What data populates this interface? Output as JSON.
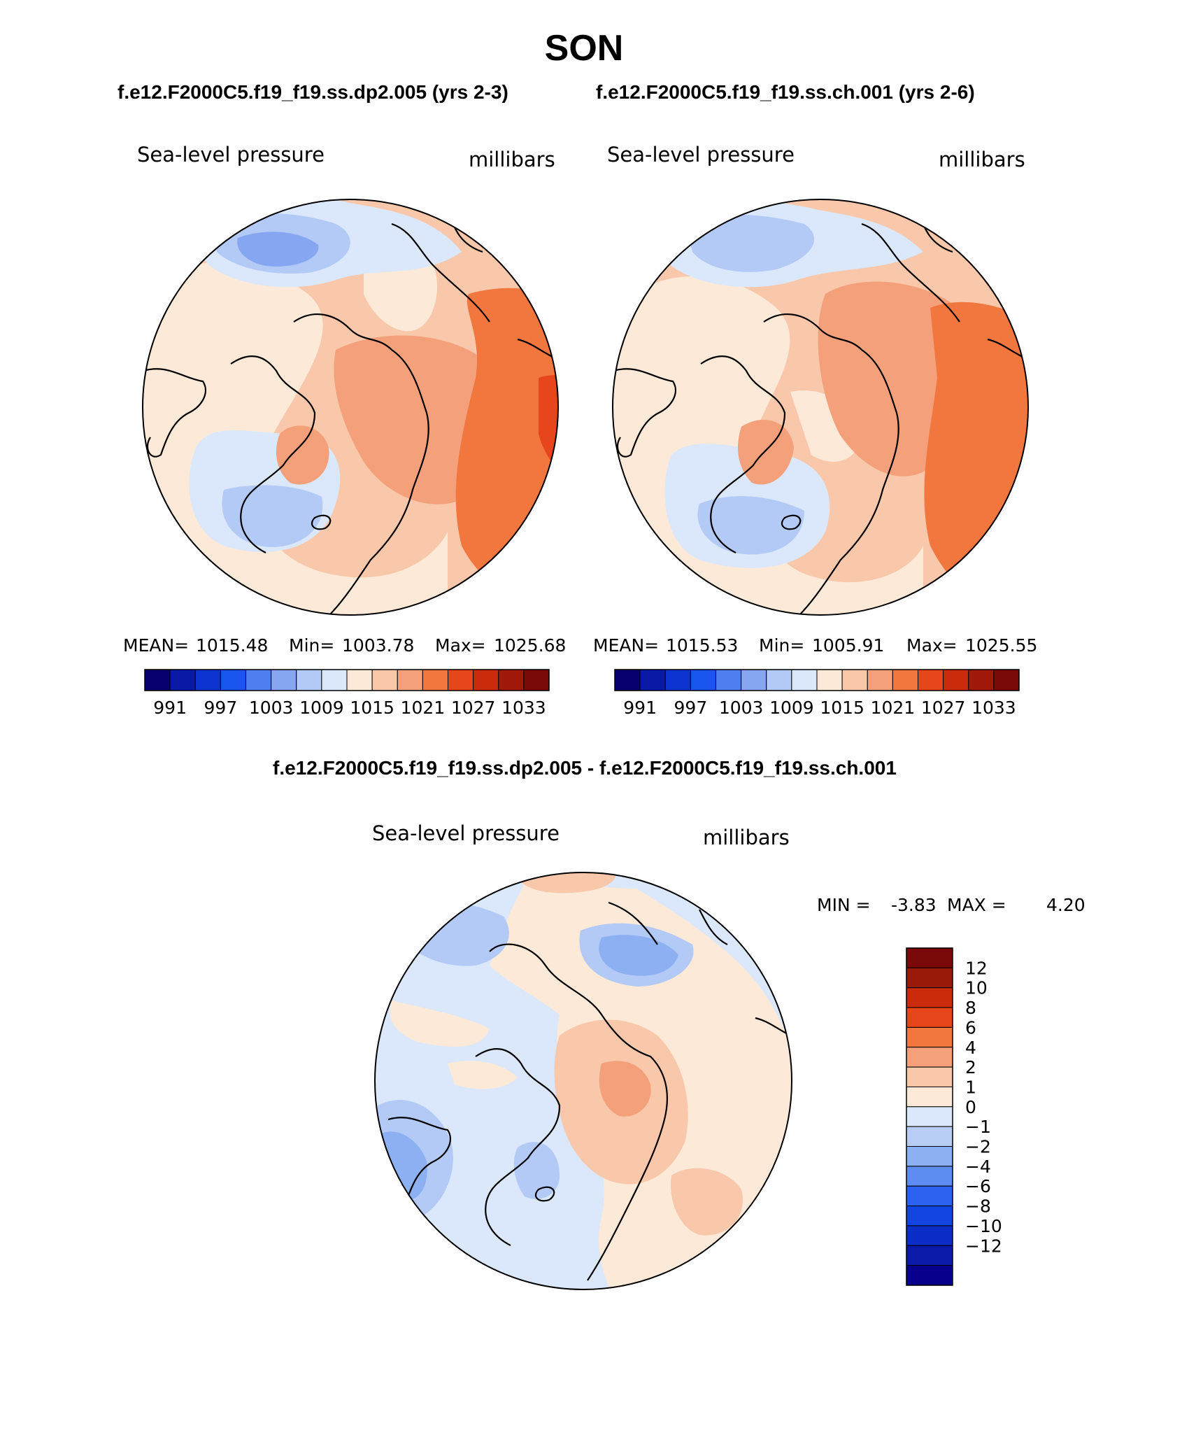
{
  "figure": {
    "title": "SON",
    "left_case_title": "f.e12.F2000C5.f19_f19.ss.dp2.005 (yrs 2-3)",
    "right_case_title": "f.e12.F2000C5.f19_f19.ss.ch.001 (yrs 2-6)",
    "diff_title": "f.e12.F2000C5.f19_f19.ss.dp2.005 - f.e12.F2000C5.f19_f19.ss.ch.001"
  },
  "panels": [
    {
      "variable": "Sea-level pressure",
      "units": "millibars",
      "mean_label": "MEAN=",
      "mean": "1015.48",
      "min_label": "Min=",
      "min": "1003.78",
      "max_label": "Max=",
      "max": "1025.68"
    },
    {
      "variable": "Sea-level pressure",
      "units": "millibars",
      "mean_label": "MEAN=",
      "mean": "1015.53",
      "min_label": "Min=",
      "min": "1005.91",
      "max_label": "Max=",
      "max": "1025.55"
    }
  ],
  "diff_panel": {
    "variable": "Sea-level pressure",
    "units": "millibars",
    "min_label": "MIN =",
    "min": "-3.83",
    "max_label": "MAX =",
    "max": "4.20"
  },
  "colorbar_main": {
    "colors": [
      "#08006e",
      "#0a1aa6",
      "#0d33d0",
      "#1a55ef",
      "#4f7ef0",
      "#86a6f2",
      "#b3caf7",
      "#dbe8fb",
      "#fde9d7",
      "#f9c7aa",
      "#f4a07a",
      "#f1773f",
      "#e7461d",
      "#c92b0c",
      "#a0190a",
      "#7a0a0a"
    ],
    "tick_labels": [
      "991",
      "997",
      "1003",
      "1009",
      "1015",
      "1021",
      "1027",
      "1033"
    ]
  },
  "colorbar_diff": {
    "colors": [
      "#08008c",
      "#0b1aa8",
      "#0d2ec6",
      "#1244e2",
      "#2b62f0",
      "#5f8cf0",
      "#8db0f2",
      "#b8cdf6",
      "#dbe8fb",
      "#fde9d7",
      "#f9c7aa",
      "#f4a07a",
      "#f1773f",
      "#e7461d",
      "#c92b0c",
      "#9a1a0a",
      "#7a0a0a"
    ],
    "tick_labels": [
      "12",
      "10",
      "8",
      "6",
      "4",
      "2",
      "1",
      "0",
      "−1",
      "−2",
      "−4",
      "−6",
      "−8",
      "−10",
      "−12"
    ]
  }
}
